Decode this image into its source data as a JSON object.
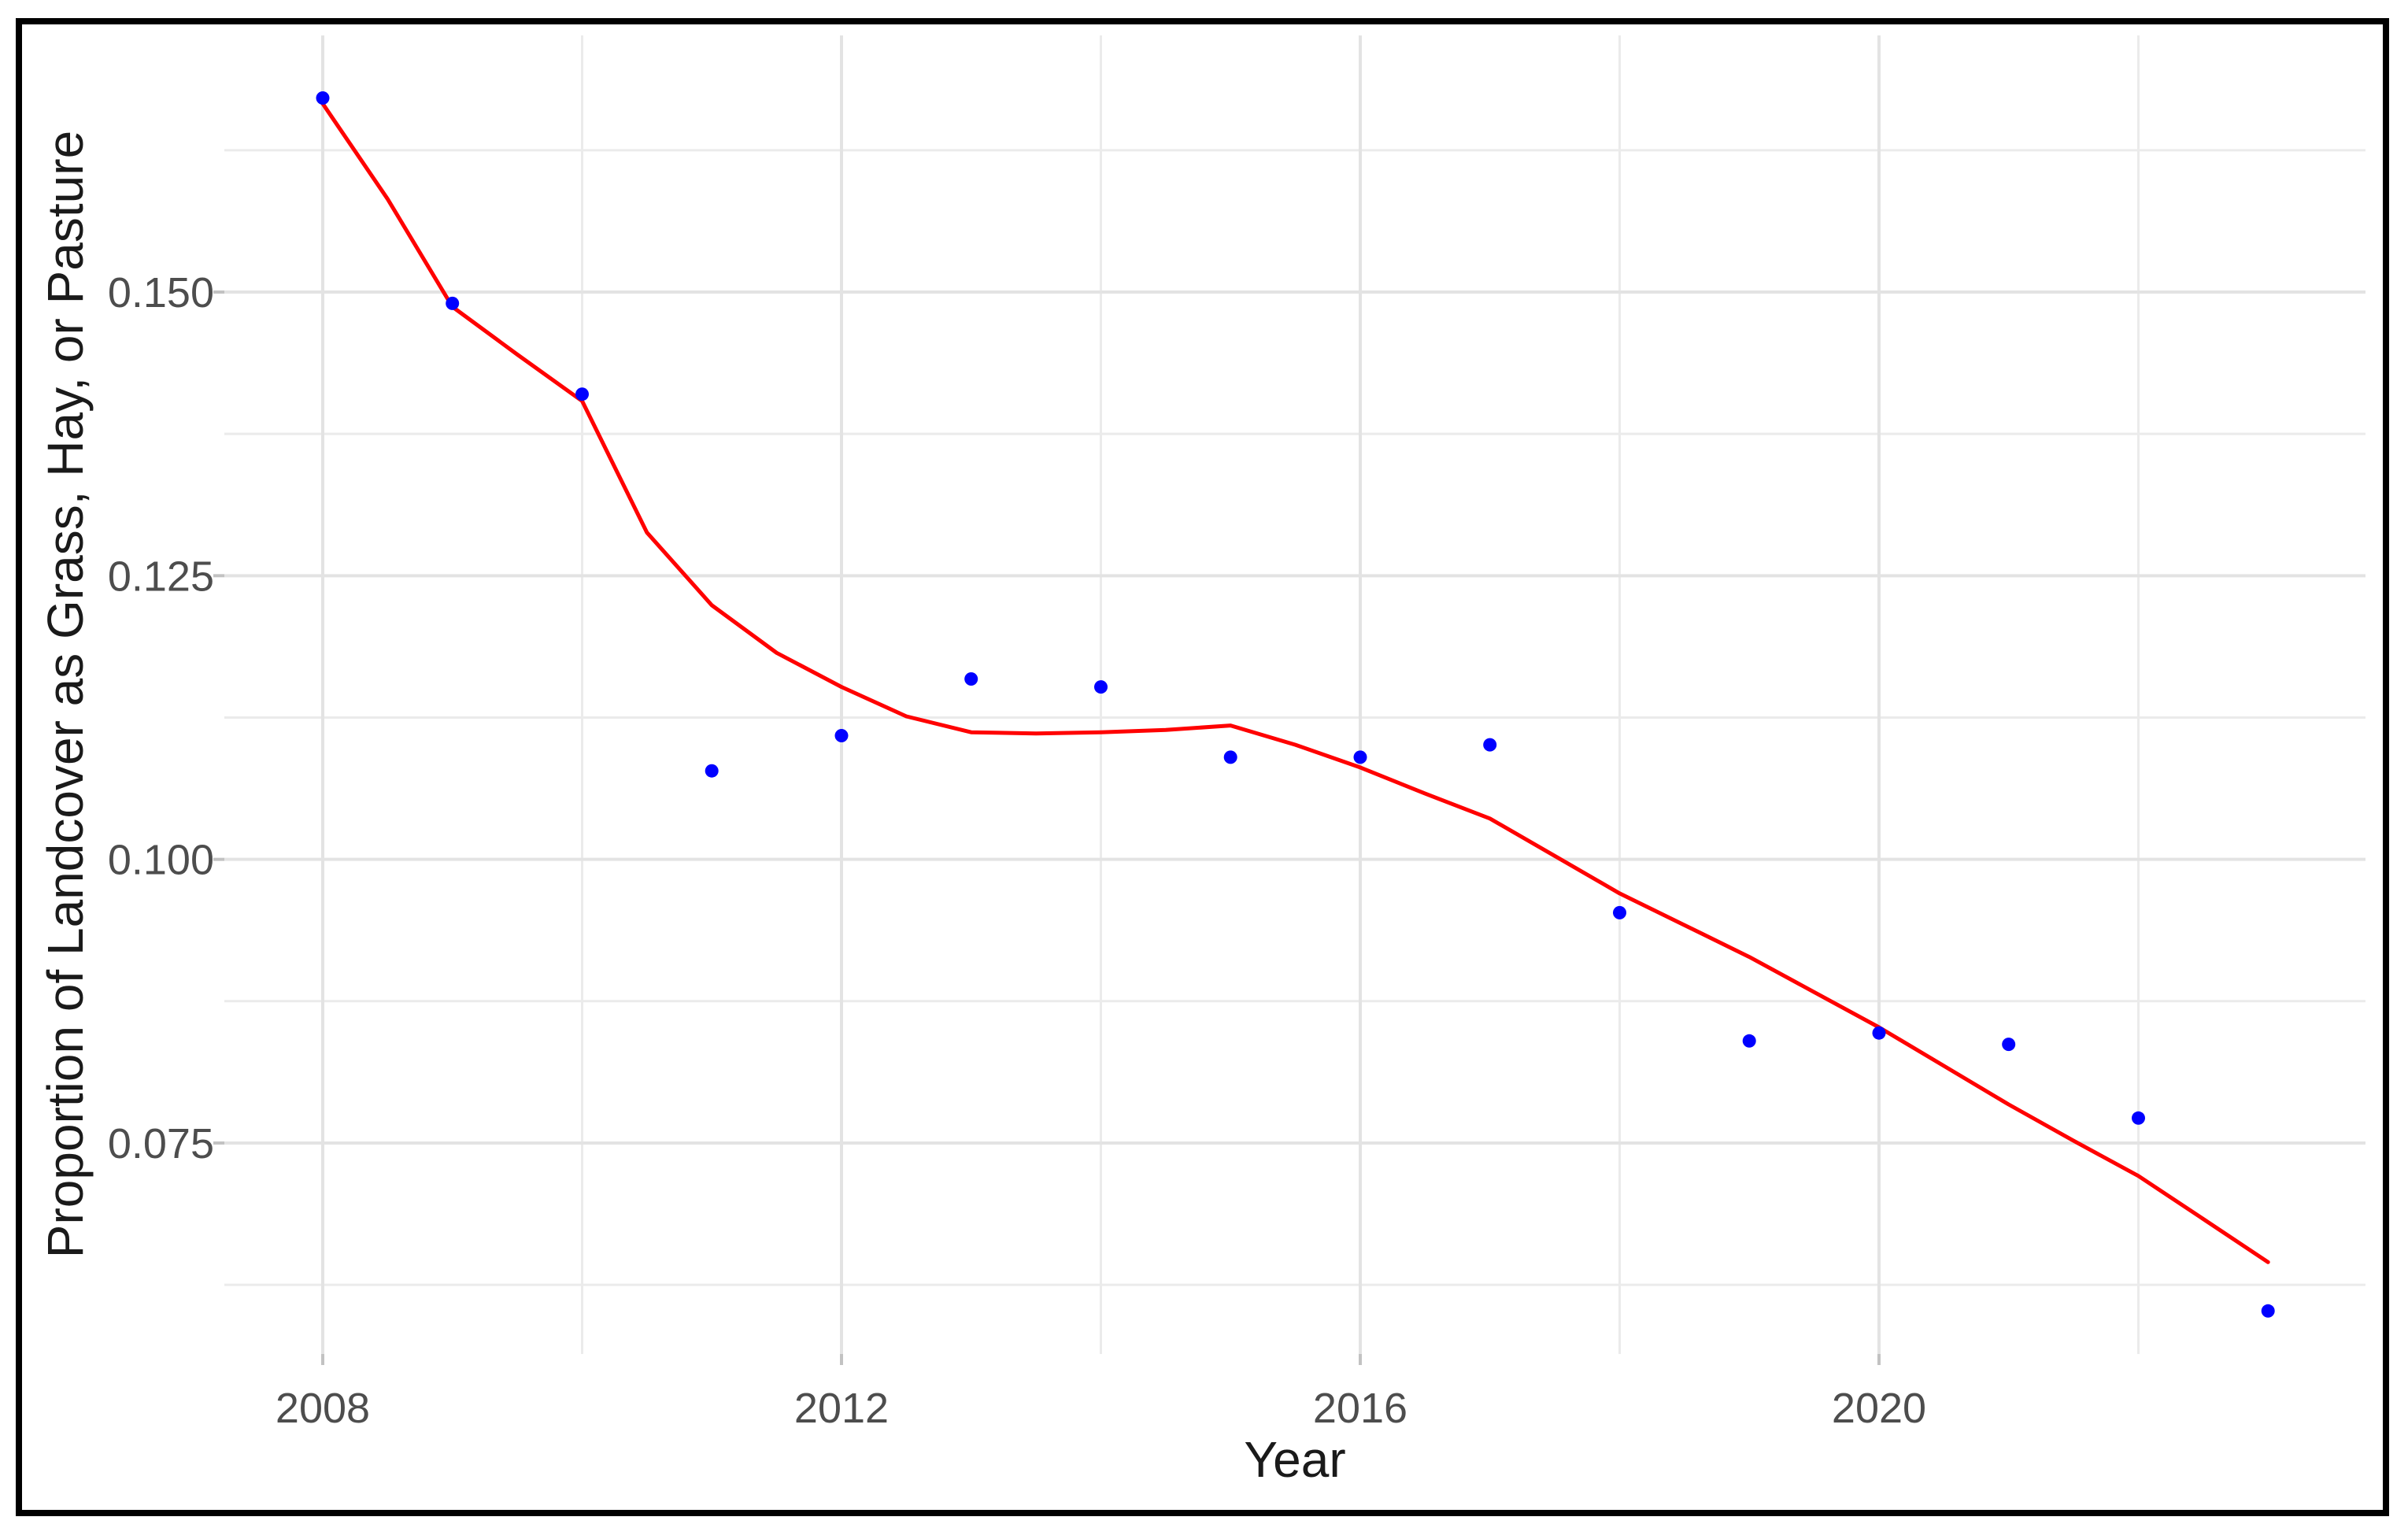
{
  "figure": {
    "background_color": "#ffffff",
    "border_color": "#000000"
  },
  "chart_data": {
    "type": "scatter",
    "title": "",
    "xlabel": "Year",
    "ylabel": "Proportion of Landcover as Grass, Hay, or Pasture",
    "xlim": [
      2007.2413,
      2023.7512
    ],
    "ylim": [
      0.056404,
      0.172618
    ],
    "grid": true,
    "legend": false,
    "x_major_ticks": [
      2008,
      2012,
      2016,
      2020
    ],
    "x_tick_labels": [
      "2008",
      "2012",
      "2016",
      "2020"
    ],
    "x_minor_ticks": [
      2010,
      2014,
      2018,
      2022
    ],
    "y_major_ticks": [
      0.075,
      0.1,
      0.125,
      0.15
    ],
    "y_tick_labels": [
      "0.075",
      "0.100",
      "0.125",
      "0.150"
    ],
    "y_minor_ticks": [
      0.0625,
      0.0875,
      0.1125,
      0.1375,
      0.1625
    ],
    "colors": {
      "points": "#0000FF",
      "smooth_line": "#FF0000",
      "grid_major": "#E3E3E3",
      "grid_minor": "#EBEBEB",
      "axis_tick_mark": "#C2C2C2",
      "axis_text": "#4d4d4d",
      "axis_title": "#1a1a1a"
    },
    "series": [
      {
        "name": "observed-proportion-points",
        "type": "scatter",
        "color": "#0000FF",
        "x": [
          2008,
          2009,
          2010,
          2011,
          2012,
          2013,
          2014,
          2015,
          2016,
          2017,
          2018,
          2019,
          2020,
          2021,
          2022,
          2023
        ],
        "y": [
          0.1671,
          0.149,
          0.141,
          0.1078,
          0.1109,
          0.1159,
          0.1152,
          0.109,
          0.109,
          0.1101,
          0.0953,
          0.084,
          0.0847,
          0.0837,
          0.0772,
          0.0602
        ]
      },
      {
        "name": "loess-smooth-line",
        "type": "line",
        "color": "#FF0000",
        "x": [
          2008,
          2008.5,
          2009,
          2009.5,
          2010,
          2010.5,
          2011,
          2011.5,
          2012,
          2012.5,
          2013,
          2013.5,
          2014,
          2014.5,
          2015,
          2015.5,
          2016,
          2016.5,
          2017,
          2017.5,
          2018,
          2018.5,
          2019,
          2019.5,
          2020,
          2020.5,
          2021,
          2021.5,
          2022,
          2022.5,
          2023
        ],
        "y": [
          0.1666,
          0.1582,
          0.1487,
          0.1445,
          0.1404,
          0.1288,
          0.1224,
          0.1182,
          0.1152,
          0.1126,
          0.1112,
          0.1111,
          0.1112,
          0.1114,
          0.1118,
          0.1101,
          0.1081,
          0.1058,
          0.1036,
          0.1003,
          0.097,
          0.0942,
          0.0914,
          0.0883,
          0.0852,
          0.0818,
          0.0784,
          0.0752,
          0.0721,
          0.0683,
          0.0645
        ]
      }
    ]
  }
}
